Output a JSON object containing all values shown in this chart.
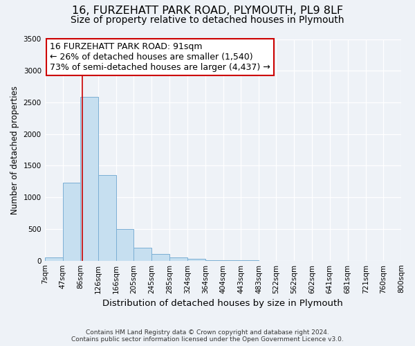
{
  "title1": "16, FURZEHATT PARK ROAD, PLYMOUTH, PL9 8LF",
  "title2": "Size of property relative to detached houses in Plymouth",
  "xlabel": "Distribution of detached houses by size in Plymouth",
  "ylabel": "Number of detached properties",
  "bin_edges": [
    7,
    47,
    86,
    126,
    166,
    205,
    245,
    285,
    324,
    364,
    404,
    443,
    483,
    522,
    562,
    602,
    641,
    681,
    721,
    760,
    800
  ],
  "bar_heights": [
    50,
    1230,
    2590,
    1350,
    500,
    200,
    110,
    50,
    30,
    10,
    5,
    2,
    1,
    0,
    0,
    0,
    0,
    0,
    0,
    0
  ],
  "bar_color": "#c6dff0",
  "bar_edge_color": "#7bafd4",
  "bar_alpha": 1.0,
  "vline_x": 91,
  "vline_color": "#cc0000",
  "ylim": [
    0,
    3500
  ],
  "annotation_title": "16 FURZEHATT PARK ROAD: 91sqm",
  "annotation_line1": "← 26% of detached houses are smaller (1,540)",
  "annotation_line2": "73% of semi-detached houses are larger (4,437) →",
  "annotation_box_color": "white",
  "annotation_box_edge": "#cc0000",
  "footer1": "Contains HM Land Registry data © Crown copyright and database right 2024.",
  "footer2": "Contains public sector information licensed under the Open Government Licence v3.0.",
  "tick_labels": [
    "7sqm",
    "47sqm",
    "86sqm",
    "126sqm",
    "166sqm",
    "205sqm",
    "245sqm",
    "285sqm",
    "324sqm",
    "364sqm",
    "404sqm",
    "443sqm",
    "483sqm",
    "522sqm",
    "562sqm",
    "602sqm",
    "641sqm",
    "681sqm",
    "721sqm",
    "760sqm",
    "800sqm"
  ],
  "background_color": "#eef2f7",
  "grid_color": "#ffffff",
  "yticks": [
    0,
    500,
    1000,
    1500,
    2000,
    2500,
    3000,
    3500
  ],
  "title1_fontsize": 11.5,
  "title2_fontsize": 10,
  "annotation_fontsize": 9,
  "ylabel_fontsize": 8.5,
  "xlabel_fontsize": 9.5,
  "tick_fontsize": 7.5,
  "footer_fontsize": 6.5
}
